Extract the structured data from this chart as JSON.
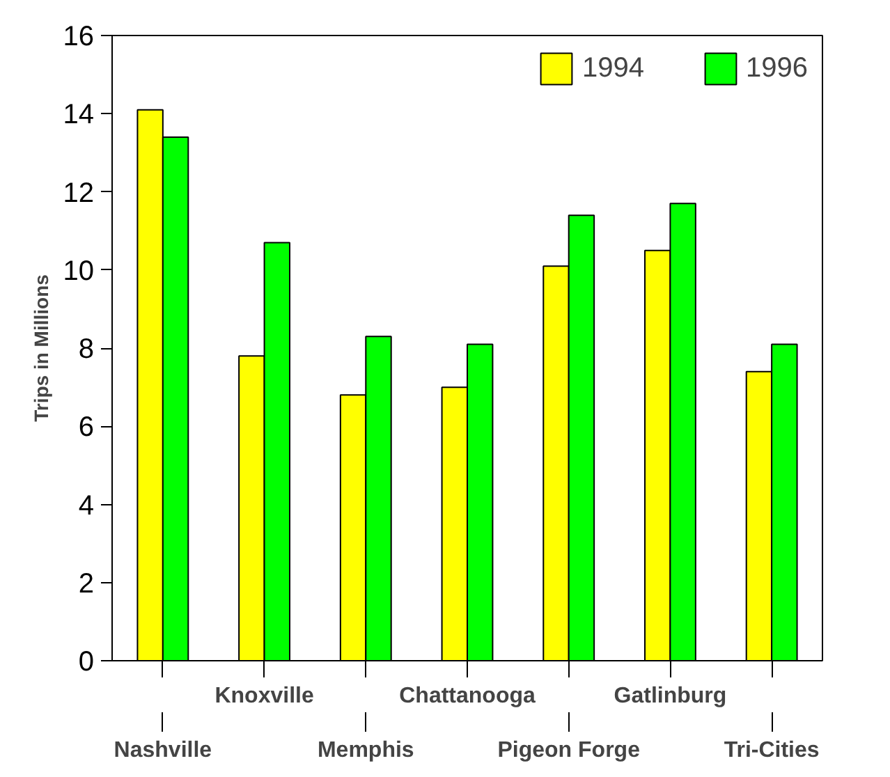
{
  "chart_data": {
    "type": "bar",
    "ylabel": "Trips in Millions",
    "categories": [
      "Nashville",
      "Knoxville",
      "Memphis",
      "Chattanooga",
      "Pigeon Forge",
      "Gatlinburg",
      "Tri-Cities"
    ],
    "series": [
      {
        "name": "1994",
        "color": "#ffff00",
        "values": [
          14.1,
          7.8,
          6.8,
          7.0,
          10.1,
          10.5,
          7.4
        ]
      },
      {
        "name": "1996",
        "color": "#00ff00",
        "values": [
          13.4,
          10.7,
          8.3,
          8.1,
          11.4,
          11.7,
          8.1
        ]
      }
    ],
    "ylim": [
      0,
      16
    ],
    "yticks": [
      0,
      2,
      4,
      6,
      8,
      10,
      12,
      14,
      16
    ],
    "grid": false,
    "legend": "top right"
  }
}
